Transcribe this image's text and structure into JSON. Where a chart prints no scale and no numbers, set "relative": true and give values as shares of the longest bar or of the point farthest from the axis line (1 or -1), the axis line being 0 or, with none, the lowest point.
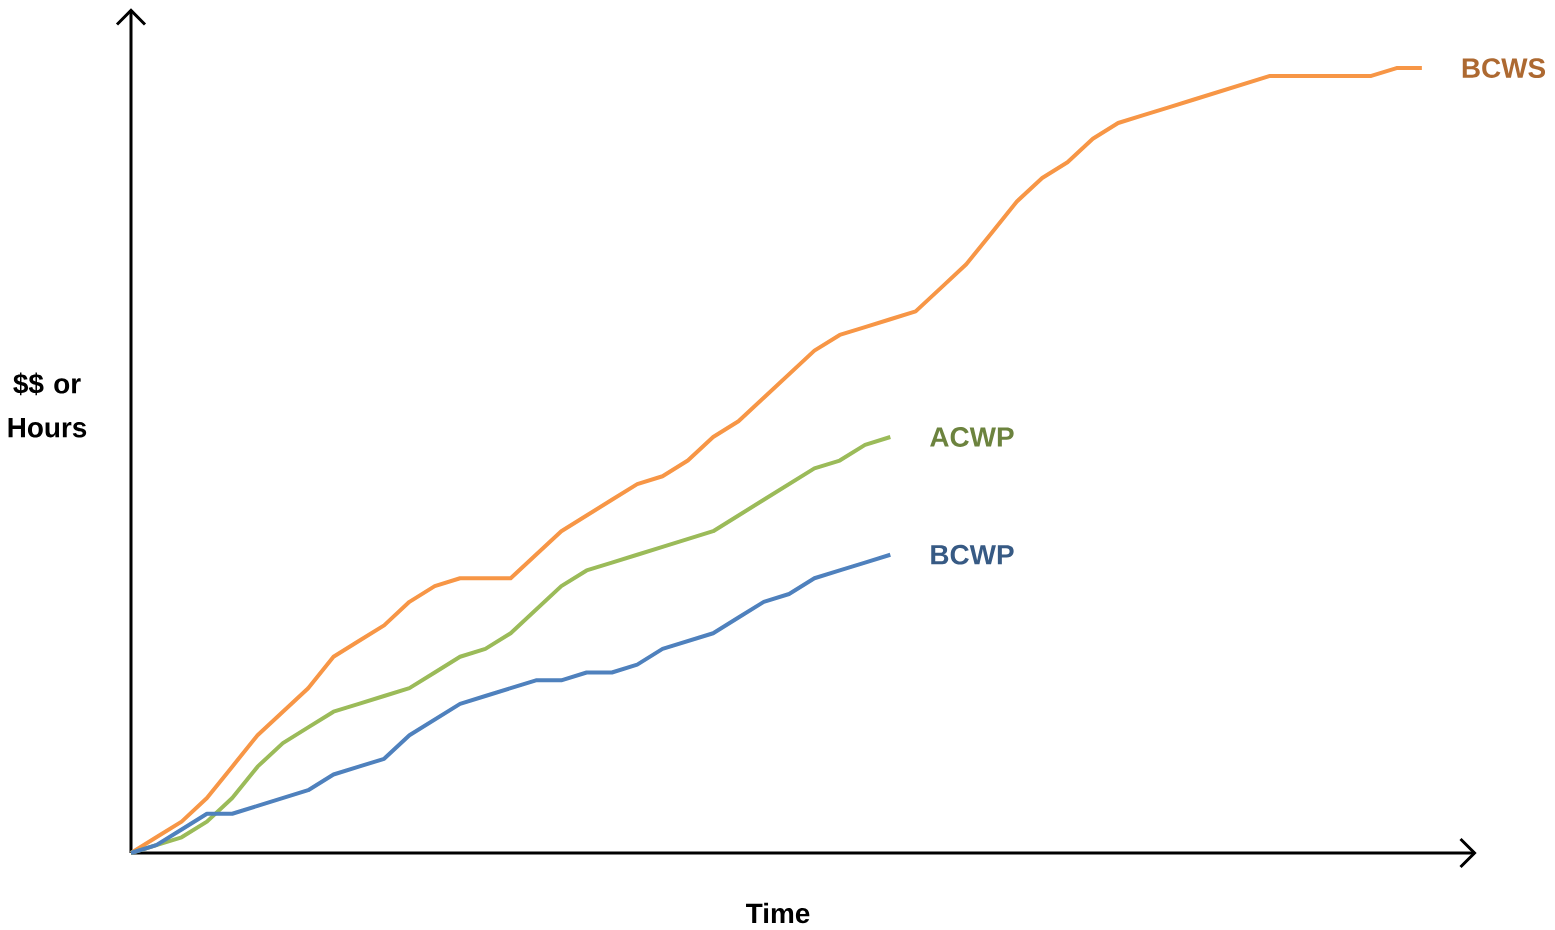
{
  "chart_data": {
    "type": "line",
    "relative": true,
    "xlabel": "Time",
    "ylabel": "$$ or Hours",
    "categories": [
      null,
      null,
      null,
      null,
      null,
      null,
      null,
      null,
      null,
      null,
      null,
      null,
      null,
      null,
      null,
      null,
      null,
      null,
      null,
      null,
      null,
      null,
      null,
      null,
      null,
      null,
      null,
      null,
      null,
      null,
      null,
      null,
      null,
      null,
      null,
      null,
      null,
      null,
      null,
      null,
      null,
      null,
      null,
      null,
      null,
      null,
      null,
      null,
      null,
      null,
      null,
      null
    ],
    "series": [
      {
        "name": "BCWS",
        "color": "#f79646",
        "values": [
          0,
          0.02,
          0.04,
          0.07,
          0.11,
          0.15,
          0.18,
          0.21,
          0.25,
          0.27,
          0.29,
          0.32,
          0.34,
          0.35,
          0.35,
          0.35,
          0.38,
          0.41,
          0.43,
          0.45,
          0.47,
          0.48,
          0.5,
          0.53,
          0.55,
          0.58,
          0.61,
          0.64,
          0.66,
          0.67,
          0.68,
          0.69,
          0.72,
          0.75,
          0.79,
          0.83,
          0.86,
          0.88,
          0.91,
          0.93,
          0.94,
          0.95,
          0.96,
          0.97,
          0.98,
          0.99,
          0.99,
          0.99,
          0.99,
          0.99,
          1,
          1
        ]
      },
      {
        "name": "ACWP",
        "color": "#9bbb59",
        "values": [
          0,
          0.01,
          0.02,
          0.04,
          0.07,
          0.11,
          0.14,
          0.16,
          0.18,
          0.19,
          0.2,
          0.21,
          0.23,
          0.25,
          0.26,
          0.28,
          0.31,
          0.34,
          0.36,
          0.37,
          0.38,
          0.39,
          0.4,
          0.41,
          0.43,
          0.45,
          0.47,
          0.49,
          0.5,
          0.52,
          0.53,
          null,
          null,
          null,
          null,
          null,
          null,
          null,
          null,
          null,
          null,
          null,
          null,
          null,
          null,
          null,
          null,
          null,
          null,
          null,
          null,
          null
        ]
      },
      {
        "name": "BCWP",
        "color": "#4f81bd",
        "values": [
          0,
          0.01,
          0.03,
          0.05,
          0.05,
          0.06,
          0.07,
          0.08,
          0.1,
          0.11,
          0.12,
          0.15,
          0.17,
          0.19,
          0.2,
          0.21,
          0.22,
          0.22,
          0.23,
          0.23,
          0.24,
          0.26,
          0.27,
          0.28,
          0.3,
          0.32,
          0.33,
          0.35,
          0.36,
          0.37,
          0.38,
          null,
          null,
          null,
          null,
          null,
          null,
          null,
          null,
          null,
          null,
          null,
          null,
          null,
          null,
          null,
          null,
          null,
          null,
          null,
          null,
          null
        ]
      }
    ]
  }
}
